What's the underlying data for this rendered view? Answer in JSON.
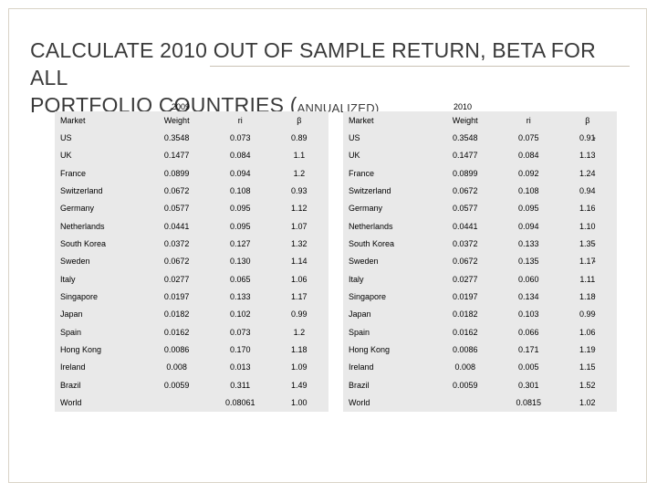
{
  "slide": {
    "title_line1": "CALCULATE 2010 OUT OF SAMPLE  RETURN, BETA FOR ALL",
    "title_line2_main": "PORTFOLIO COUNTRIES (",
    "title_line2_small": "ANNUALIZED)"
  },
  "headers": {
    "market": "Market",
    "weight": "Weight",
    "ri": "ri",
    "beta": "β"
  },
  "table_2009": {
    "year": "2009",
    "rows": [
      {
        "market": "US",
        "weight": "0.3548",
        "ri": "0.073",
        "beta": "0.89"
      },
      {
        "market": "UK",
        "weight": "0.1477",
        "ri": "0.084",
        "beta": "1.1"
      },
      {
        "market": "France",
        "weight": "0.0899",
        "ri": "0.094",
        "beta": "1.2"
      },
      {
        "market": "Switzerland",
        "weight": "0.0672",
        "ri": "0.108",
        "beta": "0.93"
      },
      {
        "market": "Germany",
        "weight": "0.0577",
        "ri": "0.095",
        "beta": "1.12"
      },
      {
        "market": "Netherlands",
        "weight": "0.0441",
        "ri": "0.095",
        "beta": "1.07"
      },
      {
        "market": "South Korea",
        "weight": "0.0372",
        "ri": "0.127",
        "beta": "1.32"
      },
      {
        "market": "Sweden",
        "weight": "0.0672",
        "ri": "0.130",
        "beta": "1.14"
      },
      {
        "market": "Italy",
        "weight": "0.0277",
        "ri": "0.065",
        "beta": "1.06"
      },
      {
        "market": "Singapore",
        "weight": "0.0197",
        "ri": "0.133",
        "beta": "1.17"
      },
      {
        "market": "Japan",
        "weight": "0.0182",
        "ri": "0.102",
        "beta": "0.99"
      },
      {
        "market": "Spain",
        "weight": "0.0162",
        "ri": "0.073",
        "beta": "1.2"
      },
      {
        "market": "Hong Kong",
        "weight": "0.0086",
        "ri": "0.170",
        "beta": "1.18"
      },
      {
        "market": "Ireland",
        "weight": "0.008",
        "ri": "0.013",
        "beta": "1.09"
      },
      {
        "market": "Brazil",
        "weight": "0.0059",
        "ri": "0.311",
        "beta": "1.49"
      },
      {
        "market": "World",
        "weight": "",
        "ri": "0.08061",
        "beta": "1.00"
      }
    ]
  },
  "table_2010": {
    "year": "2010",
    "rows": [
      {
        "market": "US",
        "weight": "0.3548",
        "ri": "0.075",
        "beta": "0.91"
      },
      {
        "market": "UK",
        "weight": "0.1477",
        "ri": "0.084",
        "beta": "1.13"
      },
      {
        "market": "France",
        "weight": "0.0899",
        "ri": "0.092",
        "beta": "1.24"
      },
      {
        "market": "Switzerland",
        "weight": "0.0672",
        "ri": "0.108",
        "beta": "0.94"
      },
      {
        "market": "Germany",
        "weight": "0.0577",
        "ri": "0.095",
        "beta": "1.16"
      },
      {
        "market": "Netherlands",
        "weight": "0.0441",
        "ri": "0.094",
        "beta": "1.10"
      },
      {
        "market": "South Korea",
        "weight": "0.0372",
        "ri": "0.133",
        "beta": "1.35"
      },
      {
        "market": "Sweden",
        "weight": "0.0672",
        "ri": "0.135",
        "beta": "1.17"
      },
      {
        "market": "Italy",
        "weight": "0.0277",
        "ri": "0.060",
        "beta": "1.11"
      },
      {
        "market": "Singapore",
        "weight": "0.0197",
        "ri": "0.134",
        "beta": "1.18"
      },
      {
        "market": "Japan",
        "weight": "0.0182",
        "ri": "0.103",
        "beta": "0.99"
      },
      {
        "market": "Spain",
        "weight": "0.0162",
        "ri": "0.066",
        "beta": "1.06"
      },
      {
        "market": "Hong Kong",
        "weight": "0.0086",
        "ri": "0.171",
        "beta": "1.19"
      },
      {
        "market": "Ireland",
        "weight": "0.008",
        "ri": "0.005",
        "beta": "1.15"
      },
      {
        "market": "Brazil",
        "weight": "0.0059",
        "ri": "0.301",
        "beta": "1.52"
      },
      {
        "market": "World",
        "weight": "",
        "ri": "0.0815",
        "beta": "1.02"
      }
    ]
  },
  "marks": {
    "dot": "•"
  }
}
